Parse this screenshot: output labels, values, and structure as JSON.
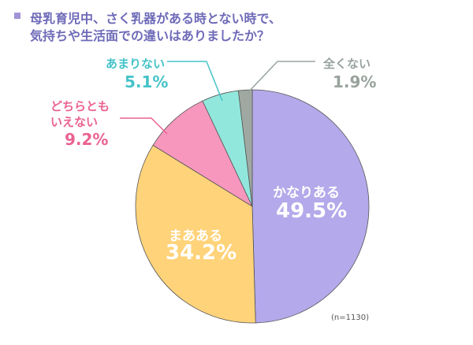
{
  "title_lines": [
    "母乳育児中、さく乳器がある時とない時で、",
    "気持ちや生活面での違いはありましたか？"
  ],
  "note": "(n=1130)",
  "chart_data": {
    "type": "pie",
    "title": "母乳育児中、さく乳器がある時とない時で、気持ちや生活面での違いはありましたか？",
    "categories": [
      "かなりある",
      "まあある",
      "どちらともいえない",
      "あまりない",
      "全くない"
    ],
    "values": [
      49.5,
      34.2,
      9.2,
      5.1,
      1.9
    ],
    "value_labels": [
      "49.5%",
      "34.2%",
      "9.2%",
      "5.1%",
      "1.9%"
    ],
    "category_labels": [
      [
        "かなりある"
      ],
      [
        "まあある"
      ],
      [
        "どちらとも",
        "いえない"
      ],
      [
        "あまりない"
      ],
      [
        "全くない"
      ]
    ],
    "colors": [
      "#b4a9ea",
      "#ffd37a",
      "#f797bd",
      "#92e7dc",
      "#9fa9a2"
    ],
    "label_colors": [
      "#ffffff",
      "#ffffff",
      "#ea6292",
      "#45c3c8",
      "#98a39c"
    ],
    "n": 1130,
    "start": "top",
    "direction": "clockwise"
  }
}
